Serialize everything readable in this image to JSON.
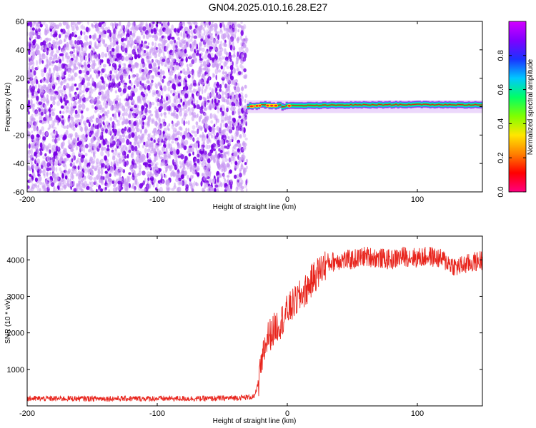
{
  "title": "GN04.2025.010.16.28.E27",
  "colors": {
    "dots_dark": "#7a00e6",
    "dots_light": "#c99af3",
    "snr_line": "#e8241c",
    "colormap": [
      "#d400ff",
      "#7f00ff",
      "#1a33ff",
      "#00c8ff",
      "#00ff66",
      "#7fff00",
      "#ffe600",
      "#ff8000",
      "#ff0000",
      "#ff0080"
    ]
  },
  "chart_data": [
    {
      "type": "heatmap",
      "title": "GN04.2025.010.16.28.E27",
      "xlabel": "Height of straight line (km)",
      "ylabel": "Frequency (Hz)",
      "xlim": [
        -200,
        150
      ],
      "ylim": [
        -60,
        60
      ],
      "x_ticks": [
        -200,
        -100,
        0,
        100
      ],
      "x_tick_labels": [
        "-200",
        "-100",
        "0",
        "100"
      ],
      "y_ticks": [
        -60,
        -40,
        -20,
        0,
        20,
        40,
        60
      ],
      "y_tick_labels": [
        "-60",
        "-40",
        "-20",
        "0",
        "20",
        "40",
        "60"
      ],
      "noise_region": {
        "x_from": -200,
        "x_to": -31,
        "freq_from": -60,
        "freq_to": 60
      },
      "signal_band": {
        "x_from": -31,
        "x_to": 150,
        "center_freq_points": [
          [
            -31,
            0
          ],
          [
            -20,
            0.8
          ],
          [
            0,
            0.6
          ],
          [
            50,
            1.2
          ],
          [
            100,
            1.5
          ],
          [
            150,
            1.2
          ]
        ],
        "peak_normalized_amplitude": 1.0
      },
      "colorbar": {
        "label": "Normalized spectral amplitude",
        "range": [
          0,
          1
        ],
        "ticks": [
          0.0,
          0.2,
          0.4,
          0.6,
          0.8
        ],
        "tick_labels": [
          "0.0",
          "0.2",
          "0.4",
          "0.6",
          "0.8"
        ]
      }
    },
    {
      "type": "line",
      "xlabel": "Height of straight line (km)",
      "ylabel": "SNR (10 * v/v)",
      "xlim": [
        -200,
        150
      ],
      "ylim": [
        0,
        4650
      ],
      "x_ticks": [
        -200,
        -100,
        0,
        100
      ],
      "x_tick_labels": [
        "-200",
        "-100",
        "0",
        "100"
      ],
      "y_ticks": [
        1000,
        2000,
        3000,
        4000
      ],
      "y_tick_labels": [
        "1000",
        "2000",
        "3000",
        "4000"
      ],
      "series": [
        {
          "x": [
            -200,
            -180,
            -160,
            -140,
            -120,
            -100,
            -80,
            -60,
            -40,
            -25,
            -20,
            -18,
            -15,
            -12,
            -10,
            -8,
            -5,
            0,
            5,
            10,
            15,
            20,
            25,
            30,
            40,
            50,
            60,
            70,
            80,
            90,
            100,
            110,
            120,
            130,
            140,
            150
          ],
          "y": [
            200,
            200,
            200,
            200,
            200,
            200,
            200,
            200,
            220,
            250,
            1000,
            1500,
            1900,
            2000,
            2100,
            2200,
            2300,
            2600,
            2800,
            3000,
            3200,
            3500,
            3700,
            3900,
            4000,
            4000,
            4100,
            4050,
            4000,
            4100,
            4050,
            4100,
            4000,
            3800,
            3900,
            4000
          ]
        }
      ]
    }
  ]
}
